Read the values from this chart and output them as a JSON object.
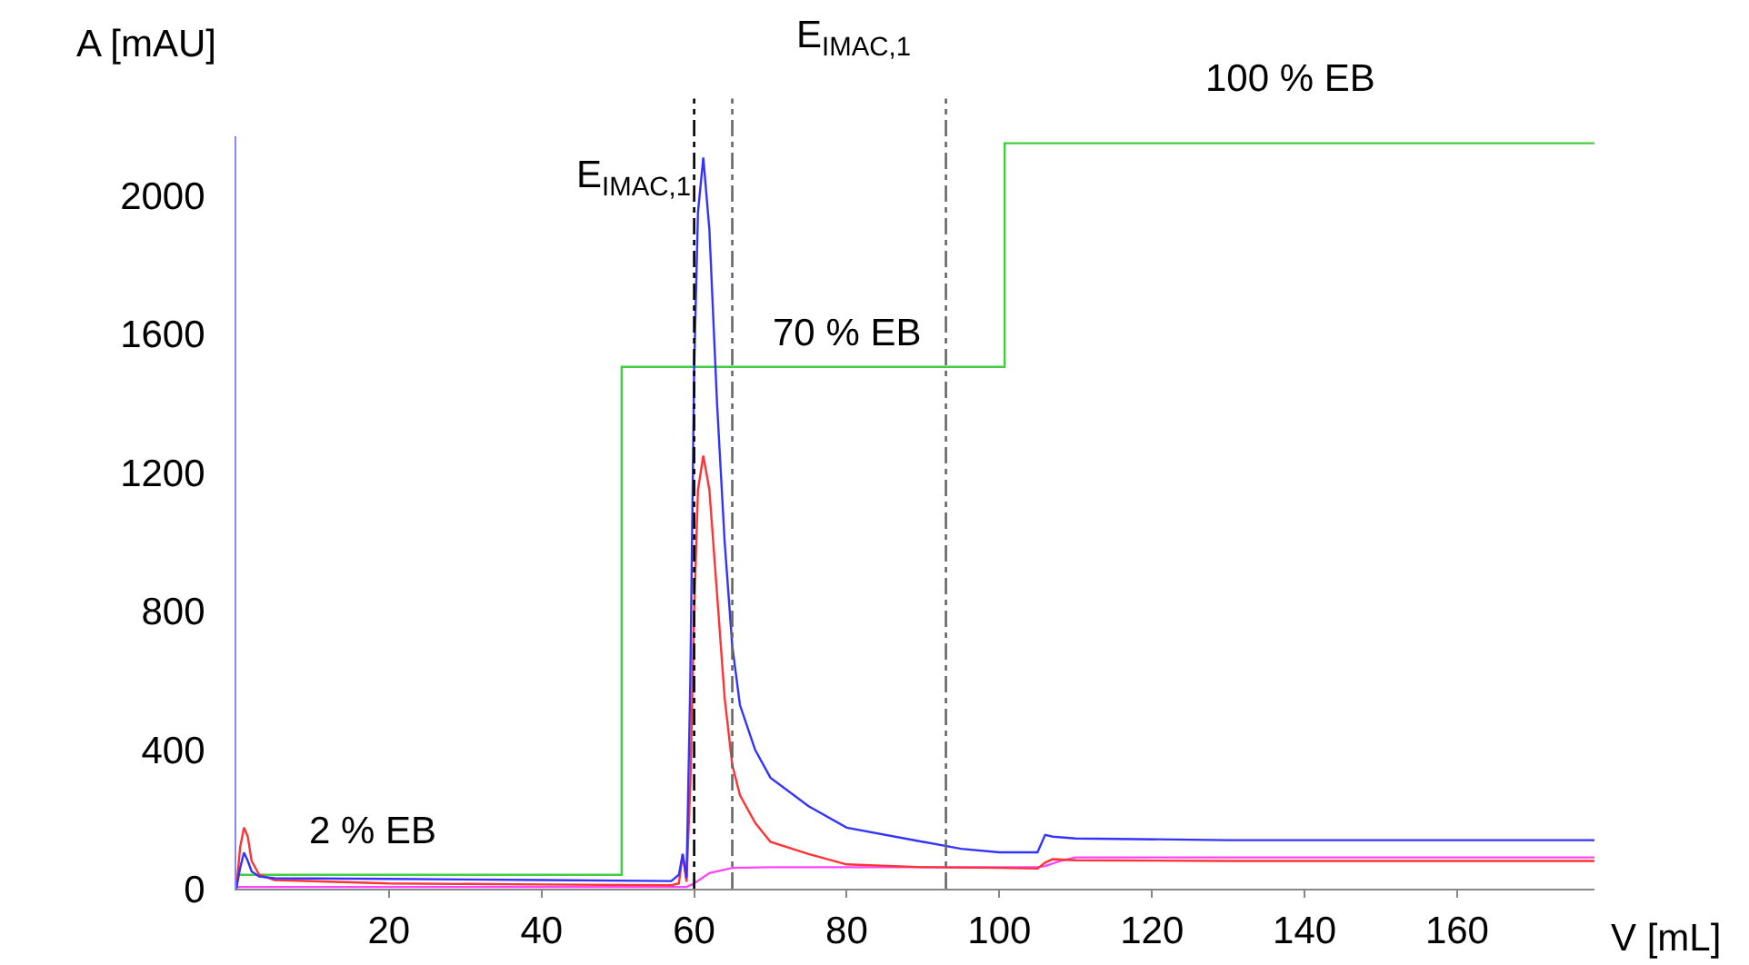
{
  "chart_data": {
    "type": "line",
    "xlabel": "V [mL]",
    "ylabel": "A [mAU]",
    "xlim": [
      0,
      178
    ],
    "xticks": [
      20,
      40,
      60,
      80,
      100,
      120,
      140,
      160
    ],
    "ylim": [
      0,
      2170
    ],
    "yticks": [
      0,
      400,
      800,
      1200,
      1600,
      2000
    ],
    "grid": false,
    "marker": "none",
    "line_style": "solid",
    "series": [
      {
        "type": "step",
        "color": "#44cc44",
        "x": [
          0,
          50.5,
          100.7,
          178
        ],
        "values": [
          40,
          1505,
          2150,
          2150
        ]
      },
      {
        "color": "#ff44ff",
        "x": [
          0,
          20,
          40,
          58,
          59,
          60,
          62,
          65,
          70,
          90,
          105,
          106,
          108,
          110,
          140,
          178
        ],
        "values": [
          5,
          5,
          5,
          5,
          5,
          15,
          45,
          60,
          62,
          62,
          62,
          65,
          80,
          90,
          90,
          90
        ]
      },
      {
        "color": "#ff3333",
        "x": [
          0,
          0.5,
          1,
          1.5,
          2,
          3,
          5,
          20,
          40,
          57,
          58,
          58.5,
          59,
          59.5,
          60,
          60.5,
          61.2,
          62,
          63,
          64,
          65,
          66,
          68,
          70,
          75,
          80,
          90,
          100,
          105,
          106,
          107,
          110,
          130,
          178
        ],
        "values": [
          0,
          120,
          176,
          150,
          80,
          40,
          25,
          15,
          12,
          10,
          15,
          100,
          20,
          300,
          800,
          1150,
          1249,
          1150,
          850,
          550,
          357,
          270,
          190,
          135,
          100,
          70,
          62,
          60,
          58,
          75,
          85,
          82,
          80,
          80
        ]
      },
      {
        "color": "#3333ff",
        "x": [
          0,
          0.5,
          1,
          1.5,
          2,
          3,
          5,
          20,
          40,
          57,
          58,
          58.5,
          59,
          59.5,
          60,
          60.5,
          61.2,
          62,
          63,
          64,
          65,
          66,
          68,
          70,
          75,
          80,
          90,
          95,
          100,
          105,
          106,
          107,
          110,
          130,
          178
        ],
        "values": [
          0,
          60,
          104,
          80,
          50,
          35,
          30,
          28,
          25,
          22,
          40,
          100,
          30,
          600,
          1500,
          1950,
          2109,
          1900,
          1400,
          1000,
          700,
          530,
          400,
          320,
          238,
          176,
          135,
          115,
          105,
          105,
          155,
          150,
          145,
          140,
          140
        ]
      }
    ],
    "ref_lines": [
      {
        "axis": "x",
        "value": 60,
        "label": "E$_{IMAC,1}$",
        "color": "#000000",
        "line_style": "dashdot"
      },
      {
        "axis": "x",
        "value": 65,
        "color": "#666666",
        "line_style": "dashdot"
      },
      {
        "axis": "x",
        "value": 93,
        "color": "#666666",
        "line_style": "dashdot"
      }
    ],
    "annotations": [
      "2 % EB",
      "70 % EB",
      "100 % EB",
      "E$_{IMAC,1}$"
    ]
  }
}
